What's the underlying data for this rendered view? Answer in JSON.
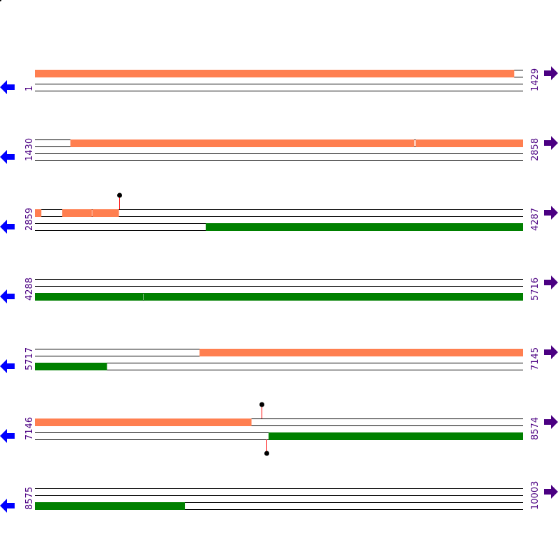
{
  "colors": {
    "forward": "#ff7f50",
    "reverse": "#008000",
    "line": "#000000",
    "label": "#4b0082",
    "left_arrow": "#0000ff",
    "right_arrow": "#4b0082",
    "stem": "#ff0000"
  },
  "bp_per_row": 1429,
  "rows": [
    {
      "start": "1",
      "end": "1429"
    },
    {
      "start": "1430",
      "end": "2858"
    },
    {
      "start": "2859",
      "end": "4287"
    },
    {
      "start": "4288",
      "end": "5716"
    },
    {
      "start": "5717",
      "end": "7145"
    },
    {
      "start": "7146",
      "end": "8574"
    },
    {
      "start": "8575",
      "end": "10003"
    }
  ],
  "features": [
    {
      "strand": "forward",
      "from": 1,
      "to": 1403
    },
    {
      "strand": "forward",
      "from": 1534,
      "to": 2540
    },
    {
      "strand": "forward",
      "from": 2544,
      "to": 2858
    },
    {
      "strand": "forward",
      "from": 2859,
      "to": 2877
    },
    {
      "strand": "forward",
      "from": 2939,
      "to": 3025
    },
    {
      "strand": "forward",
      "from": 3027,
      "to": 3104
    },
    {
      "strand": "reverse",
      "from": 3359,
      "to": 4287
    },
    {
      "strand": "reverse",
      "from": 4288,
      "to": 4604
    },
    {
      "strand": "reverse",
      "from": 4606,
      "to": 5716
    },
    {
      "strand": "forward",
      "from": 6199,
      "to": 7145
    },
    {
      "strand": "reverse",
      "from": 5717,
      "to": 5927
    },
    {
      "strand": "forward",
      "from": 7146,
      "to": 7779
    },
    {
      "strand": "reverse",
      "from": 7830,
      "to": 8574
    },
    {
      "strand": "reverse",
      "from": 8575,
      "to": 9013
    }
  ],
  "markers": [
    {
      "position": 3106,
      "side": "top"
    },
    {
      "position": 7809,
      "side": "top"
    },
    {
      "position": 7824,
      "side": "bottom"
    }
  ],
  "icons": {
    "left": "arrow-left-icon",
    "right": "arrow-right-icon"
  }
}
